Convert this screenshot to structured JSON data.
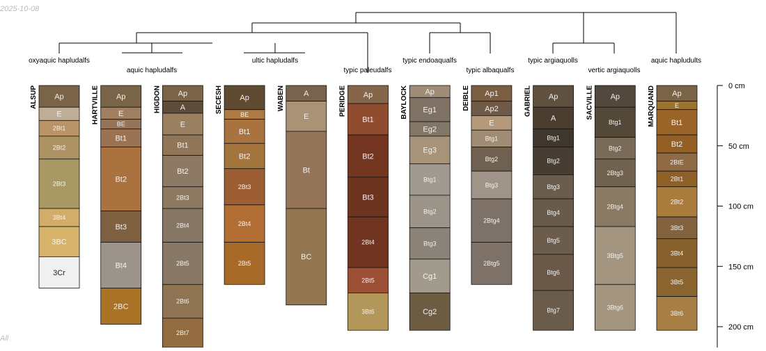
{
  "date_stamp": "2025-10-08",
  "corner_text": "All",
  "depth_axis": {
    "unit": "cm",
    "ticks": [
      0,
      50,
      100,
      150,
      200
    ],
    "max_depth_cm": 210
  },
  "subgroups": [
    {
      "label": "oxyaquic hapludalfs"
    },
    {
      "label": "aquic hapludalfs"
    },
    {
      "label": "ultic hapludalfs"
    },
    {
      "label": "typic paleudalfs"
    },
    {
      "label": "typic endoaqualfs"
    },
    {
      "label": "typic albaqualfs"
    },
    {
      "label": "typic argiaquolls"
    },
    {
      "label": "vertic argiaquolls"
    },
    {
      "label": "aquic hapludults"
    }
  ],
  "profiles": [
    {
      "name": "ALSUP",
      "horizons": [
        {
          "name": "Ap",
          "top": 0,
          "bottom": 18,
          "color": "#7a6448"
        },
        {
          "name": "E",
          "top": 18,
          "bottom": 29,
          "color": "#bfae96"
        },
        {
          "name": "2Bt1",
          "top": 29,
          "bottom": 42,
          "color": "#b89468"
        },
        {
          "name": "2Bt2",
          "top": 42,
          "bottom": 61,
          "color": "#ad9364"
        },
        {
          "name": "2Bt3",
          "top": 61,
          "bottom": 102,
          "color": "#a89964"
        },
        {
          "name": "3Bt4",
          "top": 102,
          "bottom": 117,
          "color": "#d2ad6a"
        },
        {
          "name": "3BC",
          "top": 117,
          "bottom": 142,
          "color": "#d6b46c"
        },
        {
          "name": "3Cr",
          "top": 142,
          "bottom": 168,
          "color": "#f0f0f0"
        }
      ]
    },
    {
      "name": "HARTVILLE",
      "horizons": [
        {
          "name": "Ap",
          "top": 0,
          "bottom": 18,
          "color": "#7a6448"
        },
        {
          "name": "E",
          "top": 18,
          "bottom": 28,
          "color": "#a08060"
        },
        {
          "name": "BE",
          "top": 28,
          "bottom": 36,
          "color": "#94745a"
        },
        {
          "name": "Bt1",
          "top": 36,
          "bottom": 51,
          "color": "#9a7254"
        },
        {
          "name": "Bt2",
          "top": 51,
          "bottom": 104,
          "color": "#a9723e"
        },
        {
          "name": "Bt3",
          "top": 104,
          "bottom": 130,
          "color": "#7e6040"
        },
        {
          "name": "Bt4",
          "top": 130,
          "bottom": 168,
          "color": "#9c948a"
        },
        {
          "name": "2BC",
          "top": 168,
          "bottom": 198,
          "color": "#a97227"
        }
      ]
    },
    {
      "name": "HIGDON",
      "horizons": [
        {
          "name": "Ap",
          "top": 0,
          "bottom": 13,
          "color": "#7a6448"
        },
        {
          "name": "A",
          "top": 13,
          "bottom": 23,
          "color": "#5c4c3a"
        },
        {
          "name": "E",
          "top": 23,
          "bottom": 41,
          "color": "#9a8060"
        },
        {
          "name": "Bt1",
          "top": 41,
          "bottom": 58,
          "color": "#917558"
        },
        {
          "name": "Bt2",
          "top": 58,
          "bottom": 84,
          "color": "#8d7a64"
        },
        {
          "name": "2Bt3",
          "top": 84,
          "bottom": 102,
          "color": "#8e7a60"
        },
        {
          "name": "2Bt4",
          "top": 102,
          "bottom": 130,
          "color": "#867764"
        },
        {
          "name": "2Bt5",
          "top": 130,
          "bottom": 165,
          "color": "#887966"
        },
        {
          "name": "2Bt6",
          "top": 165,
          "bottom": 193,
          "color": "#8e7452"
        },
        {
          "name": "2Bt7",
          "top": 193,
          "bottom": 220,
          "color": "#926c40"
        }
      ]
    },
    {
      "name": "SECESH",
      "horizons": [
        {
          "name": "Ap",
          "top": 0,
          "bottom": 20,
          "color": "#5f4a32"
        },
        {
          "name": "BE",
          "top": 20,
          "bottom": 28,
          "color": "#ad7a44"
        },
        {
          "name": "Bt1",
          "top": 28,
          "bottom": 48,
          "color": "#a8733e"
        },
        {
          "name": "Bt2",
          "top": 48,
          "bottom": 69,
          "color": "#a5753e"
        },
        {
          "name": "2Bt3",
          "top": 69,
          "bottom": 99,
          "color": "#9e5e33"
        },
        {
          "name": "2Bt4",
          "top": 99,
          "bottom": 130,
          "color": "#b36e34"
        },
        {
          "name": "2Bt5",
          "top": 130,
          "bottom": 165,
          "color": "#a76a28"
        }
      ]
    },
    {
      "name": "WABEN",
      "horizons": [
        {
          "name": "A",
          "top": 0,
          "bottom": 13,
          "color": "#78644e"
        },
        {
          "name": "E",
          "top": 13,
          "bottom": 38,
          "color": "#a99276"
        },
        {
          "name": "Bt",
          "top": 38,
          "bottom": 102,
          "color": "#95755a"
        },
        {
          "name": "BC",
          "top": 102,
          "bottom": 182,
          "color": "#937750"
        }
      ]
    },
    {
      "name": "PERIDGE",
      "horizons": [
        {
          "name": "Ap",
          "top": 0,
          "bottom": 15,
          "color": "#85664a"
        },
        {
          "name": "Bt1",
          "top": 15,
          "bottom": 41,
          "color": "#8f4c2e"
        },
        {
          "name": "Bt2",
          "top": 41,
          "bottom": 76,
          "color": "#753621"
        },
        {
          "name": "Bt3",
          "top": 76,
          "bottom": 109,
          "color": "#6d3520"
        },
        {
          "name": "2Bt4",
          "top": 109,
          "bottom": 151,
          "color": "#6f3521"
        },
        {
          "name": "2Bt5",
          "top": 151,
          "bottom": 172,
          "color": "#9b4f34"
        },
        {
          "name": "3Bt6",
          "top": 172,
          "bottom": 203,
          "color": "#b3975a"
        }
      ]
    },
    {
      "name": "BAYLOCK",
      "horizons": [
        {
          "name": "Ap",
          "top": 0,
          "bottom": 10,
          "color": "#9e8c74"
        },
        {
          "name": "Eg1",
          "top": 10,
          "bottom": 30,
          "color": "#7f7264"
        },
        {
          "name": "Eg2",
          "top": 30,
          "bottom": 42,
          "color": "#817668"
        },
        {
          "name": "Eg3",
          "top": 42,
          "bottom": 65,
          "color": "#a6937a"
        },
        {
          "name": "Btg1",
          "top": 65,
          "bottom": 91,
          "color": "#a19a90"
        },
        {
          "name": "Btg2",
          "top": 91,
          "bottom": 118,
          "color": "#9c9488"
        },
        {
          "name": "Btg3",
          "top": 118,
          "bottom": 144,
          "color": "#8b8378"
        },
        {
          "name": "Cg1",
          "top": 144,
          "bottom": 172,
          "color": "#a39a8e"
        },
        {
          "name": "Cg2",
          "top": 172,
          "bottom": 203,
          "color": "#6b5c42"
        }
      ]
    },
    {
      "name": "DEIBLE",
      "horizons": [
        {
          "name": "Ap1",
          "top": 0,
          "bottom": 13,
          "color": "#7a5e42"
        },
        {
          "name": "Ap2",
          "top": 13,
          "bottom": 25,
          "color": "#6e5a46"
        },
        {
          "name": "E",
          "top": 25,
          "bottom": 37,
          "color": "#b49a7a"
        },
        {
          "name": "Btg1",
          "top": 37,
          "bottom": 51,
          "color": "#a08c74"
        },
        {
          "name": "Btg2",
          "top": 51,
          "bottom": 71,
          "color": "#6f6050"
        },
        {
          "name": "Btg3",
          "top": 71,
          "bottom": 94,
          "color": "#a09488"
        },
        {
          "name": "2Btg4",
          "top": 94,
          "bottom": 130,
          "color": "#7e7268"
        },
        {
          "name": "2Btg5",
          "top": 130,
          "bottom": 165,
          "color": "#7e7268"
        }
      ]
    },
    {
      "name": "GABRIEL",
      "horizons": [
        {
          "name": "Ap",
          "top": 0,
          "bottom": 18,
          "color": "#5f5040"
        },
        {
          "name": "A",
          "top": 18,
          "bottom": 36,
          "color": "#4b3e31"
        },
        {
          "name": "Btg1",
          "top": 36,
          "bottom": 51,
          "color": "#3f372e"
        },
        {
          "name": "Btg2",
          "top": 51,
          "bottom": 74,
          "color": "#473d32"
        },
        {
          "name": "Btg3",
          "top": 74,
          "bottom": 94,
          "color": "#6a5d4e"
        },
        {
          "name": "Btg4",
          "top": 94,
          "bottom": 117,
          "color": "#695b4c"
        },
        {
          "name": "Btg5",
          "top": 117,
          "bottom": 140,
          "color": "#6b5c4c"
        },
        {
          "name": "Btg6",
          "top": 140,
          "bottom": 170,
          "color": "#6a5948"
        },
        {
          "name": "Btg7",
          "top": 170,
          "bottom": 203,
          "color": "#6b5b4a"
        }
      ]
    },
    {
      "name": "SACVILLE",
      "horizons": [
        {
          "name": "Ap",
          "top": 0,
          "bottom": 18,
          "color": "#52483e"
        },
        {
          "name": "Btg1",
          "top": 18,
          "bottom": 43,
          "color": "#544838"
        },
        {
          "name": "Btg2",
          "top": 43,
          "bottom": 61,
          "color": "#7a6a58"
        },
        {
          "name": "2Btg3",
          "top": 61,
          "bottom": 84,
          "color": "#70624e"
        },
        {
          "name": "2Btg4",
          "top": 84,
          "bottom": 117,
          "color": "#8a7a64"
        },
        {
          "name": "3Btg5",
          "top": 117,
          "bottom": 165,
          "color": "#a39580"
        },
        {
          "name": "3Btg6",
          "top": 165,
          "bottom": 203,
          "color": "#a39580"
        }
      ]
    },
    {
      "name": "MARQUAND",
      "horizons": [
        {
          "name": "Ap",
          "top": 0,
          "bottom": 13,
          "color": "#7a6448"
        },
        {
          "name": "E",
          "top": 13,
          "bottom": 20,
          "color": "#9b7330"
        },
        {
          "name": "Bt1",
          "top": 20,
          "bottom": 41,
          "color": "#9a6328"
        },
        {
          "name": "Bt2",
          "top": 41,
          "bottom": 56,
          "color": "#945f24"
        },
        {
          "name": "2BtE",
          "top": 56,
          "bottom": 71,
          "color": "#8f6a44"
        },
        {
          "name": "2Bt1",
          "top": 71,
          "bottom": 84,
          "color": "#8e5f26"
        },
        {
          "name": "2Bt2",
          "top": 84,
          "bottom": 109,
          "color": "#a97c3e"
        },
        {
          "name": "3Bt3",
          "top": 109,
          "bottom": 127,
          "color": "#83633f"
        },
        {
          "name": "3Bt4",
          "top": 127,
          "bottom": 151,
          "color": "#86612e"
        },
        {
          "name": "3Bt5",
          "top": 151,
          "bottom": 175,
          "color": "#8a652f"
        },
        {
          "name": "3Bt6",
          "top": 175,
          "bottom": 203,
          "color": "#a77f44"
        }
      ]
    }
  ]
}
